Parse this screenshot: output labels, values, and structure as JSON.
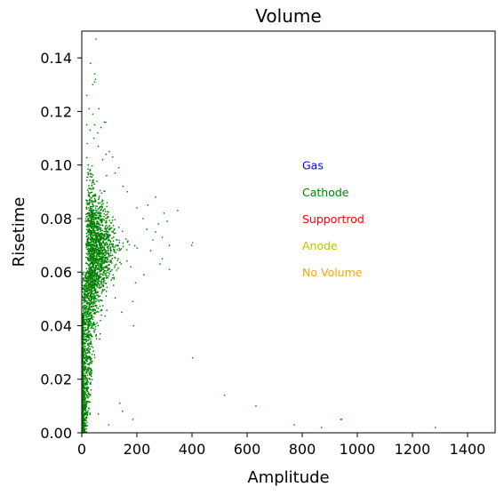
{
  "chart_data": {
    "type": "scatter",
    "title": "Volume",
    "xlabel": "Amplitude",
    "ylabel": "Risetime",
    "xlim": [
      0,
      1500
    ],
    "ylim": [
      0,
      0.15
    ],
    "xticks": [
      "0",
      "200",
      "400",
      "600",
      "800",
      "1000",
      "1200",
      "1400"
    ],
    "yticks": [
      "0.00",
      "0.02",
      "0.04",
      "0.06",
      "0.08",
      "0.10",
      "0.12",
      "0.14"
    ],
    "grid": false,
    "annotations": [
      {
        "text": "Gas",
        "color": "#0000ff",
        "x": 800,
        "y": 0.1
      },
      {
        "text": "Cathode",
        "color": "#008000",
        "x": 800,
        "y": 0.09
      },
      {
        "text": "Supportrod",
        "color": "#ff0000",
        "x": 800,
        "y": 0.08
      },
      {
        "text": "Anode",
        "color": "#bfbf00",
        "x": 800,
        "y": 0.07
      },
      {
        "text": "No Volume",
        "color": "#ffa500",
        "x": 800,
        "y": 0.06
      }
    ],
    "series": [
      {
        "color": "#008000",
        "points": [
          [
            52,
            0.147
          ],
          [
            32,
            0.138
          ],
          [
            47,
            0.134
          ],
          [
            50,
            0.132
          ],
          [
            47,
            0.131
          ],
          [
            40,
            0.13
          ],
          [
            18,
            0.126
          ],
          [
            27,
            0.121
          ],
          [
            62,
            0.121
          ],
          [
            40,
            0.119
          ],
          [
            82,
            0.116
          ],
          [
            87,
            0.116
          ],
          [
            18,
            0.115
          ],
          [
            47,
            0.115
          ],
          [
            70,
            0.114
          ],
          [
            30,
            0.113
          ],
          [
            58,
            0.112
          ],
          [
            44,
            0.11
          ],
          [
            20,
            0.108
          ],
          [
            60,
            0.107
          ],
          [
            100,
            0.105
          ],
          [
            88,
            0.104
          ],
          [
            112,
            0.103
          ],
          [
            76,
            0.102
          ],
          [
            134,
            0.099
          ],
          [
            121,
            0.097
          ],
          [
            90,
            0.096
          ],
          [
            150,
            0.092
          ],
          [
            165,
            0.09
          ],
          [
            268,
            0.088
          ],
          [
            240,
            0.085
          ],
          [
            200,
            0.084
          ],
          [
            348,
            0.083
          ],
          [
            298,
            0.082
          ],
          [
            222,
            0.08
          ],
          [
            310,
            0.079
          ],
          [
            278,
            0.078
          ],
          [
            236,
            0.076
          ],
          [
            268,
            0.075
          ],
          [
            292,
            0.073
          ],
          [
            258,
            0.072
          ],
          [
            402,
            0.071
          ],
          [
            399,
            0.07
          ],
          [
            318,
            0.07
          ],
          [
            201,
            0.069
          ],
          [
            250,
            0.068
          ],
          [
            292,
            0.065
          ],
          [
            284,
            0.063
          ],
          [
            178,
            0.062
          ],
          [
            318,
            0.061
          ],
          [
            225,
            0.059
          ],
          [
            195,
            0.056
          ],
          [
            185,
            0.049
          ],
          [
            145,
            0.045
          ],
          [
            188,
            0.04
          ],
          [
            402,
            0.028
          ],
          [
            518,
            0.014
          ],
          [
            632,
            0.01
          ],
          [
            138,
            0.011
          ],
          [
            148,
            0.008
          ],
          [
            185,
            0.005
          ],
          [
            98,
            0.003
          ],
          [
            60,
            0.007
          ],
          [
            771,
            0.003
          ],
          [
            870,
            0.002
          ],
          [
            940,
            0.005
          ],
          [
            943,
            0.005
          ],
          [
            1283,
            0.002
          ],
          [
            12,
            0.005
          ],
          [
            6,
            0.002
          ],
          [
            3,
            0.001
          ]
        ]
      }
    ]
  }
}
